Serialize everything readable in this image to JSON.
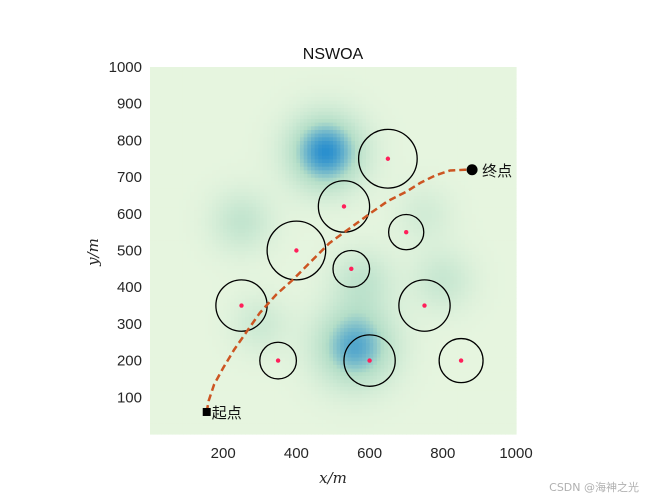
{
  "chart_data": {
    "type": "scatter",
    "title": "NSWOA",
    "xlabel": "x/m",
    "ylabel": "y/m",
    "xlim": [
      0,
      1000
    ],
    "ylim": [
      0,
      1000
    ],
    "xticks": [
      200,
      400,
      600,
      800,
      1000
    ],
    "yticks": [
      100,
      200,
      300,
      400,
      500,
      600,
      700,
      800,
      900,
      1000
    ],
    "grid": false,
    "colors": {
      "path": "#cc5522",
      "obstacle_outline": "#000000",
      "obstacle_center": "#ff1f5a",
      "terrain_low": "#e6f5df",
      "terrain_high": "#2a8fce"
    },
    "terrain_peaks": [
      {
        "x": 480,
        "y": 770,
        "height": 1.0,
        "spread": 70
      },
      {
        "x": 560,
        "y": 240,
        "height": 0.85,
        "spread": 75
      },
      {
        "x": 250,
        "y": 580,
        "height": 0.35,
        "spread": 60
      },
      {
        "x": 580,
        "y": 420,
        "height": 0.35,
        "spread": 60
      },
      {
        "x": 800,
        "y": 420,
        "height": 0.3,
        "spread": 60
      },
      {
        "x": 300,
        "y": 300,
        "height": 0.25,
        "spread": 55
      },
      {
        "x": 750,
        "y": 600,
        "height": 0.2,
        "spread": 55
      }
    ],
    "obstacles": [
      {
        "x": 650,
        "y": 750,
        "r": 80
      },
      {
        "x": 530,
        "y": 620,
        "r": 70
      },
      {
        "x": 700,
        "y": 550,
        "r": 48
      },
      {
        "x": 400,
        "y": 500,
        "r": 80
      },
      {
        "x": 550,
        "y": 450,
        "r": 50
      },
      {
        "x": 250,
        "y": 350,
        "r": 70
      },
      {
        "x": 750,
        "y": 350,
        "r": 70
      },
      {
        "x": 350,
        "y": 200,
        "r": 50
      },
      {
        "x": 600,
        "y": 200,
        "r": 70
      },
      {
        "x": 850,
        "y": 200,
        "r": 60
      }
    ],
    "path": [
      [
        155,
        60
      ],
      [
        160,
        90
      ],
      [
        175,
        135
      ],
      [
        200,
        180
      ],
      [
        230,
        230
      ],
      [
        265,
        280
      ],
      [
        300,
        330
      ],
      [
        345,
        380
      ],
      [
        390,
        420
      ],
      [
        440,
        470
      ],
      [
        490,
        520
      ],
      [
        545,
        560
      ],
      [
        600,
        600
      ],
      [
        650,
        635
      ],
      [
        700,
        660
      ],
      [
        740,
        685
      ],
      [
        780,
        705
      ],
      [
        820,
        718
      ],
      [
        860,
        720
      ],
      [
        880,
        720
      ]
    ],
    "start": {
      "x": 155,
      "y": 60,
      "label": "起点"
    },
    "end": {
      "x": 880,
      "y": 720,
      "label": "终点"
    }
  },
  "watermark": "CSDN @海神之光"
}
